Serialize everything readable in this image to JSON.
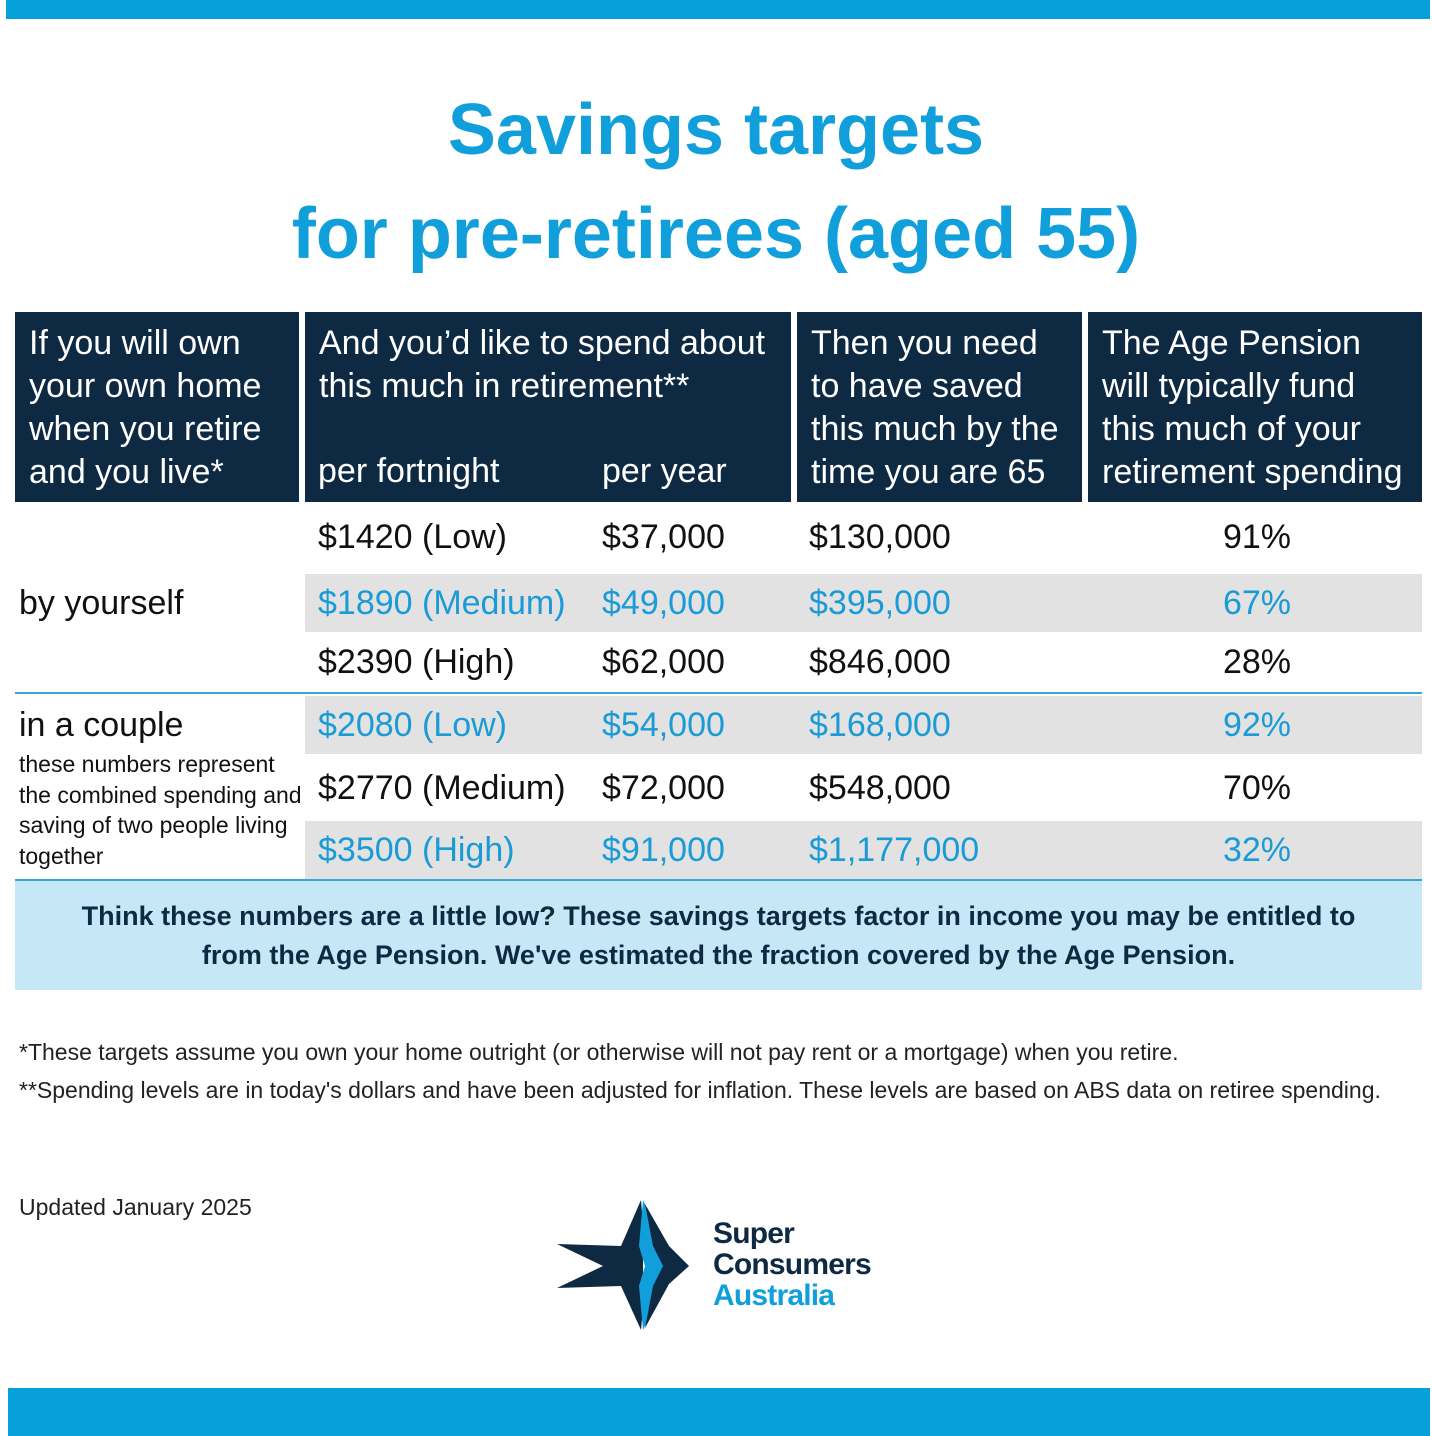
{
  "title": {
    "line1": "Savings targets",
    "line2": "for pre-retirees (aged 55)"
  },
  "table": {
    "headers": [
      "If you will own your own home when you retire and you live*",
      "And you’d like to spend about this much in retirement**",
      "Then you need to have saved this much by the time you are 65",
      "The Age Pension will typically fund this much of your retirement spending"
    ],
    "header_lines": {
      "col1": [
        "If you will own",
        "your own home",
        "when you retire",
        "and you live*"
      ],
      "col2": [
        "And you’d like to spend about",
        "this much in retirement**"
      ],
      "col3": [
        "Then you need",
        "to have saved",
        "this much by the",
        "time you are 65"
      ],
      "col4": [
        "The Age Pension",
        "will typically fund",
        "this much of your",
        "retirement spending"
      ]
    },
    "subheaders": {
      "fortnight": "per fortnight",
      "year": "per year"
    },
    "groups": [
      {
        "label": "by yourself",
        "note": ""
      },
      {
        "label": "in a couple",
        "note": "these numbers represent the combined spending and saving of two people living together"
      }
    ],
    "rows": [
      {
        "fortnight": "$1420 (Low)",
        "year": "$37,000",
        "saved": "$130,000",
        "pension": "91%"
      },
      {
        "fortnight": "$1890 (Medium)",
        "year": "$49,000",
        "saved": "$395,000",
        "pension": "67%"
      },
      {
        "fortnight": "$2390 (High)",
        "year": "$62,000",
        "saved": "$846,000",
        "pension": "28%"
      },
      {
        "fortnight": "$2080 (Low)",
        "year": "$54,000",
        "saved": "$168,000",
        "pension": "92%"
      },
      {
        "fortnight": "$2770 (Medium)",
        "year": "$72,000",
        "saved": "$548,000",
        "pension": "70%"
      },
      {
        "fortnight": "$3500 (High)",
        "year": "$91,000",
        "saved": "$1,177,000",
        "pension": "32%"
      }
    ]
  },
  "callout": {
    "line1": "Think these numbers are a little low? These savings targets factor in income you may be entitled to",
    "line2": "from the Age Pension. We've estimated the fraction covered by the Age Pension."
  },
  "footnotes": {
    "note1": "*These targets assume you own your home outright (or otherwise will not pay rent or a mortgage) when you retire.",
    "note2": "**Spending levels are in today's dollars and have been adjusted for inflation. These levels are based on ABS data on retiree spending."
  },
  "updated": "Updated January 2025",
  "logo": {
    "line1": "Super",
    "line2": "Consumers",
    "line3": "Australia",
    "icon": "star-logo-icon"
  },
  "colors": {
    "accent_blue": "#05a0d9",
    "title_blue": "#119fdb",
    "header_navy": "#0e2a43",
    "row_grey": "#e2e2e2",
    "callout_bg": "#c6e7f6"
  }
}
